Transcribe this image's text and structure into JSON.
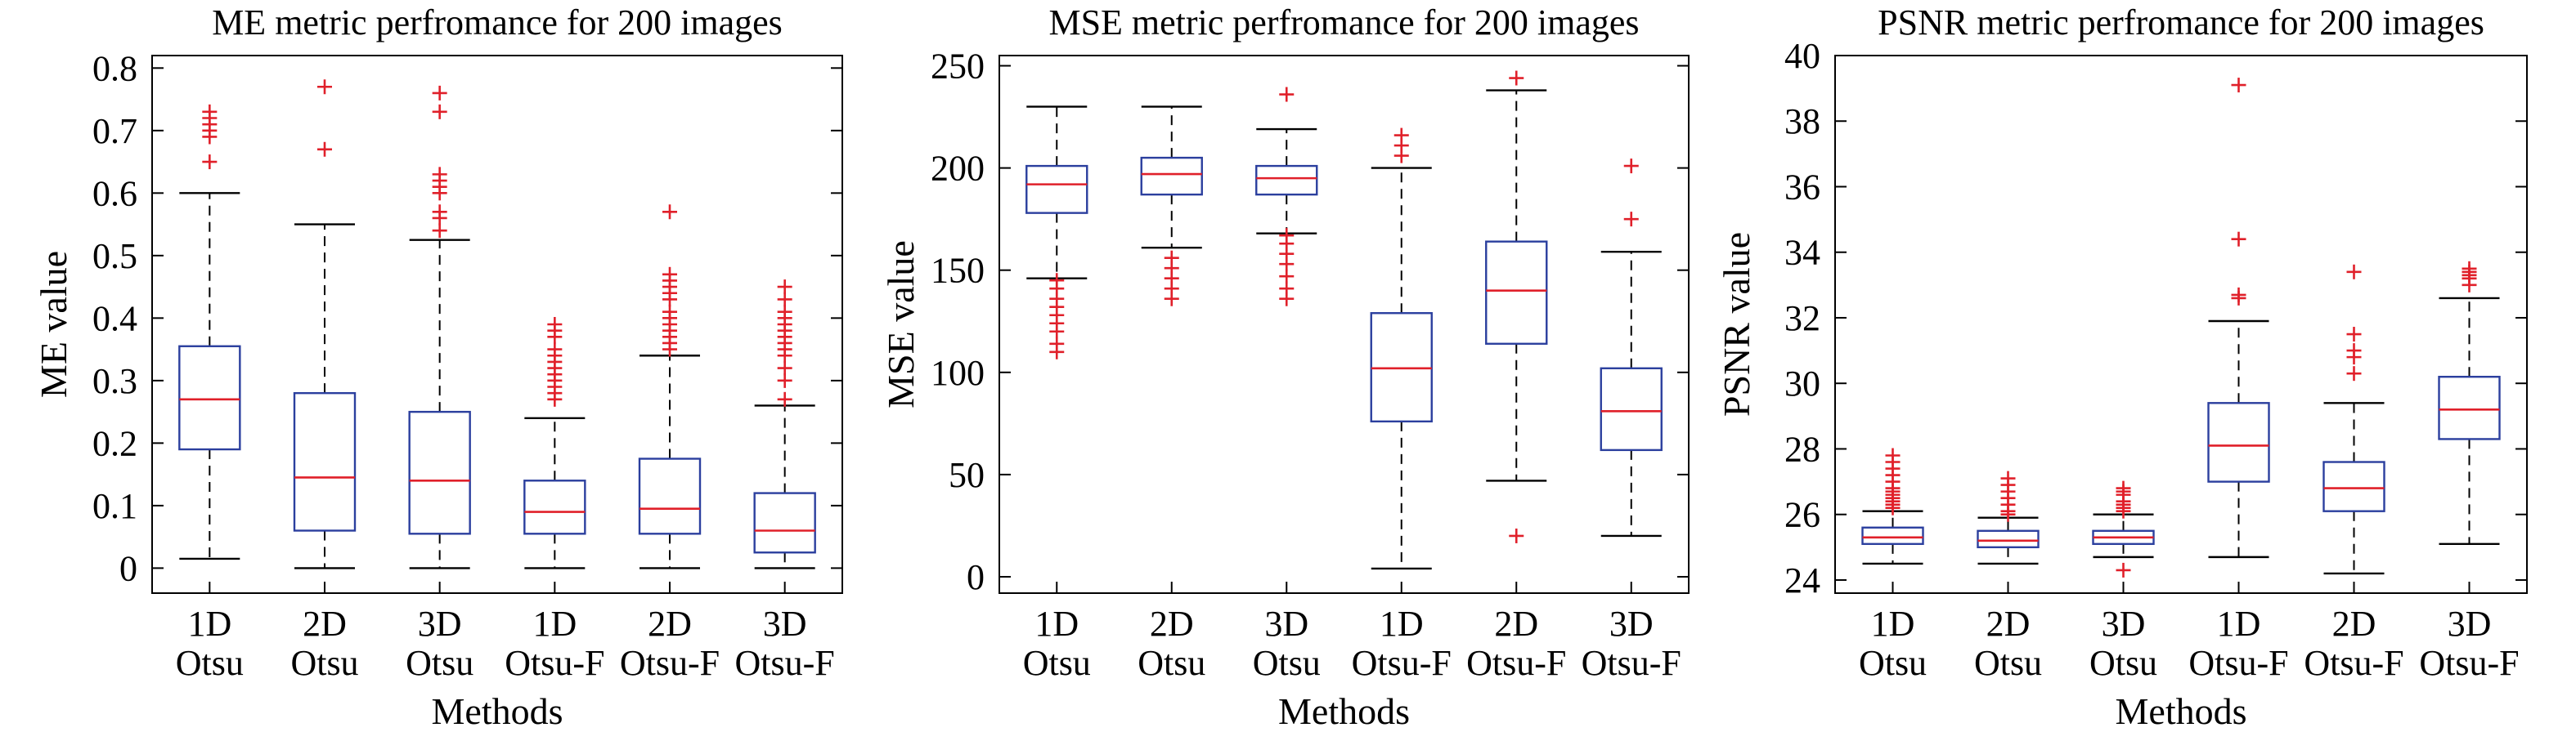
{
  "chart_data": [
    {
      "type": "box",
      "title": "ME metric perfromance for 200 images",
      "xlabel": "Methods",
      "ylabel": "ME value",
      "ylim": [
        -0.04,
        0.82
      ],
      "yticks": [
        0,
        0.1,
        0.2,
        0.3,
        0.4,
        0.5,
        0.6,
        0.7,
        0.8
      ],
      "ytick_labels": [
        "0",
        "0.1",
        "0.2",
        "0.3",
        "0.4",
        "0.5",
        "0.6",
        "0.7",
        "0.8"
      ],
      "categories": [
        [
          "1D",
          "Otsu"
        ],
        [
          "2D",
          "Otsu"
        ],
        [
          "3D",
          "Otsu"
        ],
        [
          "1D",
          "Otsu-F"
        ],
        [
          "2D",
          "Otsu-F"
        ],
        [
          "3D",
          "Otsu-F"
        ]
      ],
      "boxes": [
        {
          "whisker_low": 0.015,
          "q1": 0.19,
          "median": 0.27,
          "q3": 0.355,
          "whisker_high": 0.6,
          "outliers": [
            0.65,
            0.69,
            0.7,
            0.71,
            0.72,
            0.73
          ]
        },
        {
          "whisker_low": 0.0,
          "q1": 0.06,
          "median": 0.145,
          "q3": 0.28,
          "whisker_high": 0.55,
          "outliers": [
            0.67,
            0.77
          ]
        },
        {
          "whisker_low": 0.0,
          "q1": 0.055,
          "median": 0.14,
          "q3": 0.25,
          "whisker_high": 0.525,
          "outliers": [
            0.54,
            0.56,
            0.57,
            0.6,
            0.61,
            0.62,
            0.63,
            0.73,
            0.76
          ]
        },
        {
          "whisker_low": 0.0,
          "q1": 0.055,
          "median": 0.09,
          "q3": 0.14,
          "whisker_high": 0.24,
          "outliers": [
            0.27,
            0.28,
            0.29,
            0.3,
            0.31,
            0.32,
            0.33,
            0.34,
            0.35,
            0.37,
            0.38,
            0.39
          ]
        },
        {
          "whisker_low": 0.0,
          "q1": 0.055,
          "median": 0.095,
          "q3": 0.175,
          "whisker_high": 0.34,
          "outliers": [
            0.35,
            0.36,
            0.37,
            0.38,
            0.39,
            0.4,
            0.41,
            0.43,
            0.44,
            0.45,
            0.46,
            0.47,
            0.57
          ]
        },
        {
          "whisker_low": 0.0,
          "q1": 0.025,
          "median": 0.06,
          "q3": 0.12,
          "whisker_high": 0.26,
          "outliers": [
            0.27,
            0.3,
            0.32,
            0.34,
            0.35,
            0.36,
            0.37,
            0.38,
            0.39,
            0.4,
            0.41,
            0.43,
            0.45
          ]
        }
      ]
    },
    {
      "type": "box",
      "title": "MSE metric perfromance for 200 images",
      "xlabel": "Methods",
      "ylabel": "MSE value",
      "ylim": [
        -8,
        255
      ],
      "yticks": [
        0,
        50,
        100,
        150,
        200,
        250
      ],
      "ytick_labels": [
        "0",
        "50",
        "100",
        "150",
        "200",
        "250"
      ],
      "categories": [
        [
          "1D",
          "Otsu"
        ],
        [
          "2D",
          "Otsu"
        ],
        [
          "3D",
          "Otsu"
        ],
        [
          "1D",
          "Otsu-F"
        ],
        [
          "2D",
          "Otsu-F"
        ],
        [
          "3D",
          "Otsu-F"
        ]
      ],
      "boxes": [
        {
          "whisker_low": 146,
          "q1": 178,
          "median": 192,
          "q3": 201,
          "whisker_high": 230,
          "outliers": [
            110,
            114,
            120,
            124,
            128,
            132,
            136,
            141,
            145
          ]
        },
        {
          "whisker_low": 161,
          "q1": 187,
          "median": 197,
          "q3": 205,
          "whisker_high": 230,
          "outliers": [
            136,
            141,
            146,
            151,
            156
          ]
        },
        {
          "whisker_low": 168,
          "q1": 187,
          "median": 195,
          "q3": 201,
          "whisker_high": 219,
          "outliers": [
            136,
            141,
            147,
            153,
            158,
            163,
            167,
            236
          ]
        },
        {
          "whisker_low": 4,
          "q1": 76,
          "median": 102,
          "q3": 129,
          "whisker_high": 200,
          "outliers": [
            206,
            211,
            216
          ]
        },
        {
          "whisker_low": 47,
          "q1": 114,
          "median": 140,
          "q3": 164,
          "whisker_high": 238,
          "outliers": [
            20,
            244
          ]
        },
        {
          "whisker_low": 20,
          "q1": 62,
          "median": 81,
          "q3": 102,
          "whisker_high": 159,
          "outliers": [
            175,
            201
          ]
        }
      ]
    },
    {
      "type": "box",
      "title": "PSNR metric perfromance for 200 images",
      "xlabel": "Methods",
      "ylabel": "PSNR value",
      "ylim": [
        23.6,
        40
      ],
      "yticks": [
        24,
        26,
        28,
        30,
        32,
        34,
        36,
        38,
        40
      ],
      "ytick_labels": [
        "24",
        "26",
        "28",
        "30",
        "32",
        "34",
        "36",
        "38",
        "40"
      ],
      "categories": [
        [
          "1D",
          "Otsu"
        ],
        [
          "2D",
          "Otsu"
        ],
        [
          "3D",
          "Otsu"
        ],
        [
          "1D",
          "Otsu-F"
        ],
        [
          "2D",
          "Otsu-F"
        ],
        [
          "3D",
          "Otsu-F"
        ]
      ],
      "boxes": [
        {
          "whisker_low": 24.5,
          "q1": 25.1,
          "median": 25.3,
          "q3": 25.6,
          "whisker_high": 26.1,
          "outliers": [
            26.2,
            26.3,
            26.4,
            26.5,
            26.6,
            26.7,
            26.8,
            27.0,
            27.2,
            27.4,
            27.6,
            27.8
          ]
        },
        {
          "whisker_low": 24.5,
          "q1": 25.0,
          "median": 25.2,
          "q3": 25.5,
          "whisker_high": 25.9,
          "outliers": [
            26.0,
            26.1,
            26.3,
            26.5,
            26.7,
            26.9,
            27.1
          ]
        },
        {
          "whisker_low": 24.7,
          "q1": 25.1,
          "median": 25.3,
          "q3": 25.5,
          "whisker_high": 26.0,
          "outliers": [
            24.3,
            26.1,
            26.2,
            26.3,
            26.4,
            26.6,
            26.7,
            26.8
          ]
        },
        {
          "whisker_low": 24.7,
          "q1": 27.0,
          "median": 28.1,
          "q3": 29.4,
          "whisker_high": 31.9,
          "outliers": [
            32.6,
            32.7,
            34.4,
            39.1
          ]
        },
        {
          "whisker_low": 24.2,
          "q1": 26.1,
          "median": 26.8,
          "q3": 27.6,
          "whisker_high": 29.4,
          "outliers": [
            30.3,
            30.8,
            31.0,
            31.5,
            33.4
          ]
        },
        {
          "whisker_low": 25.1,
          "q1": 28.3,
          "median": 29.2,
          "q3": 30.2,
          "whisker_high": 32.6,
          "outliers": [
            33.0,
            33.2,
            33.3,
            33.4,
            33.5
          ]
        }
      ]
    }
  ],
  "colors": {
    "box": "#2b3f9e",
    "median": "#e0202a",
    "outlier": "#e0202a",
    "whisker": "#000000",
    "axis": "#000000"
  }
}
